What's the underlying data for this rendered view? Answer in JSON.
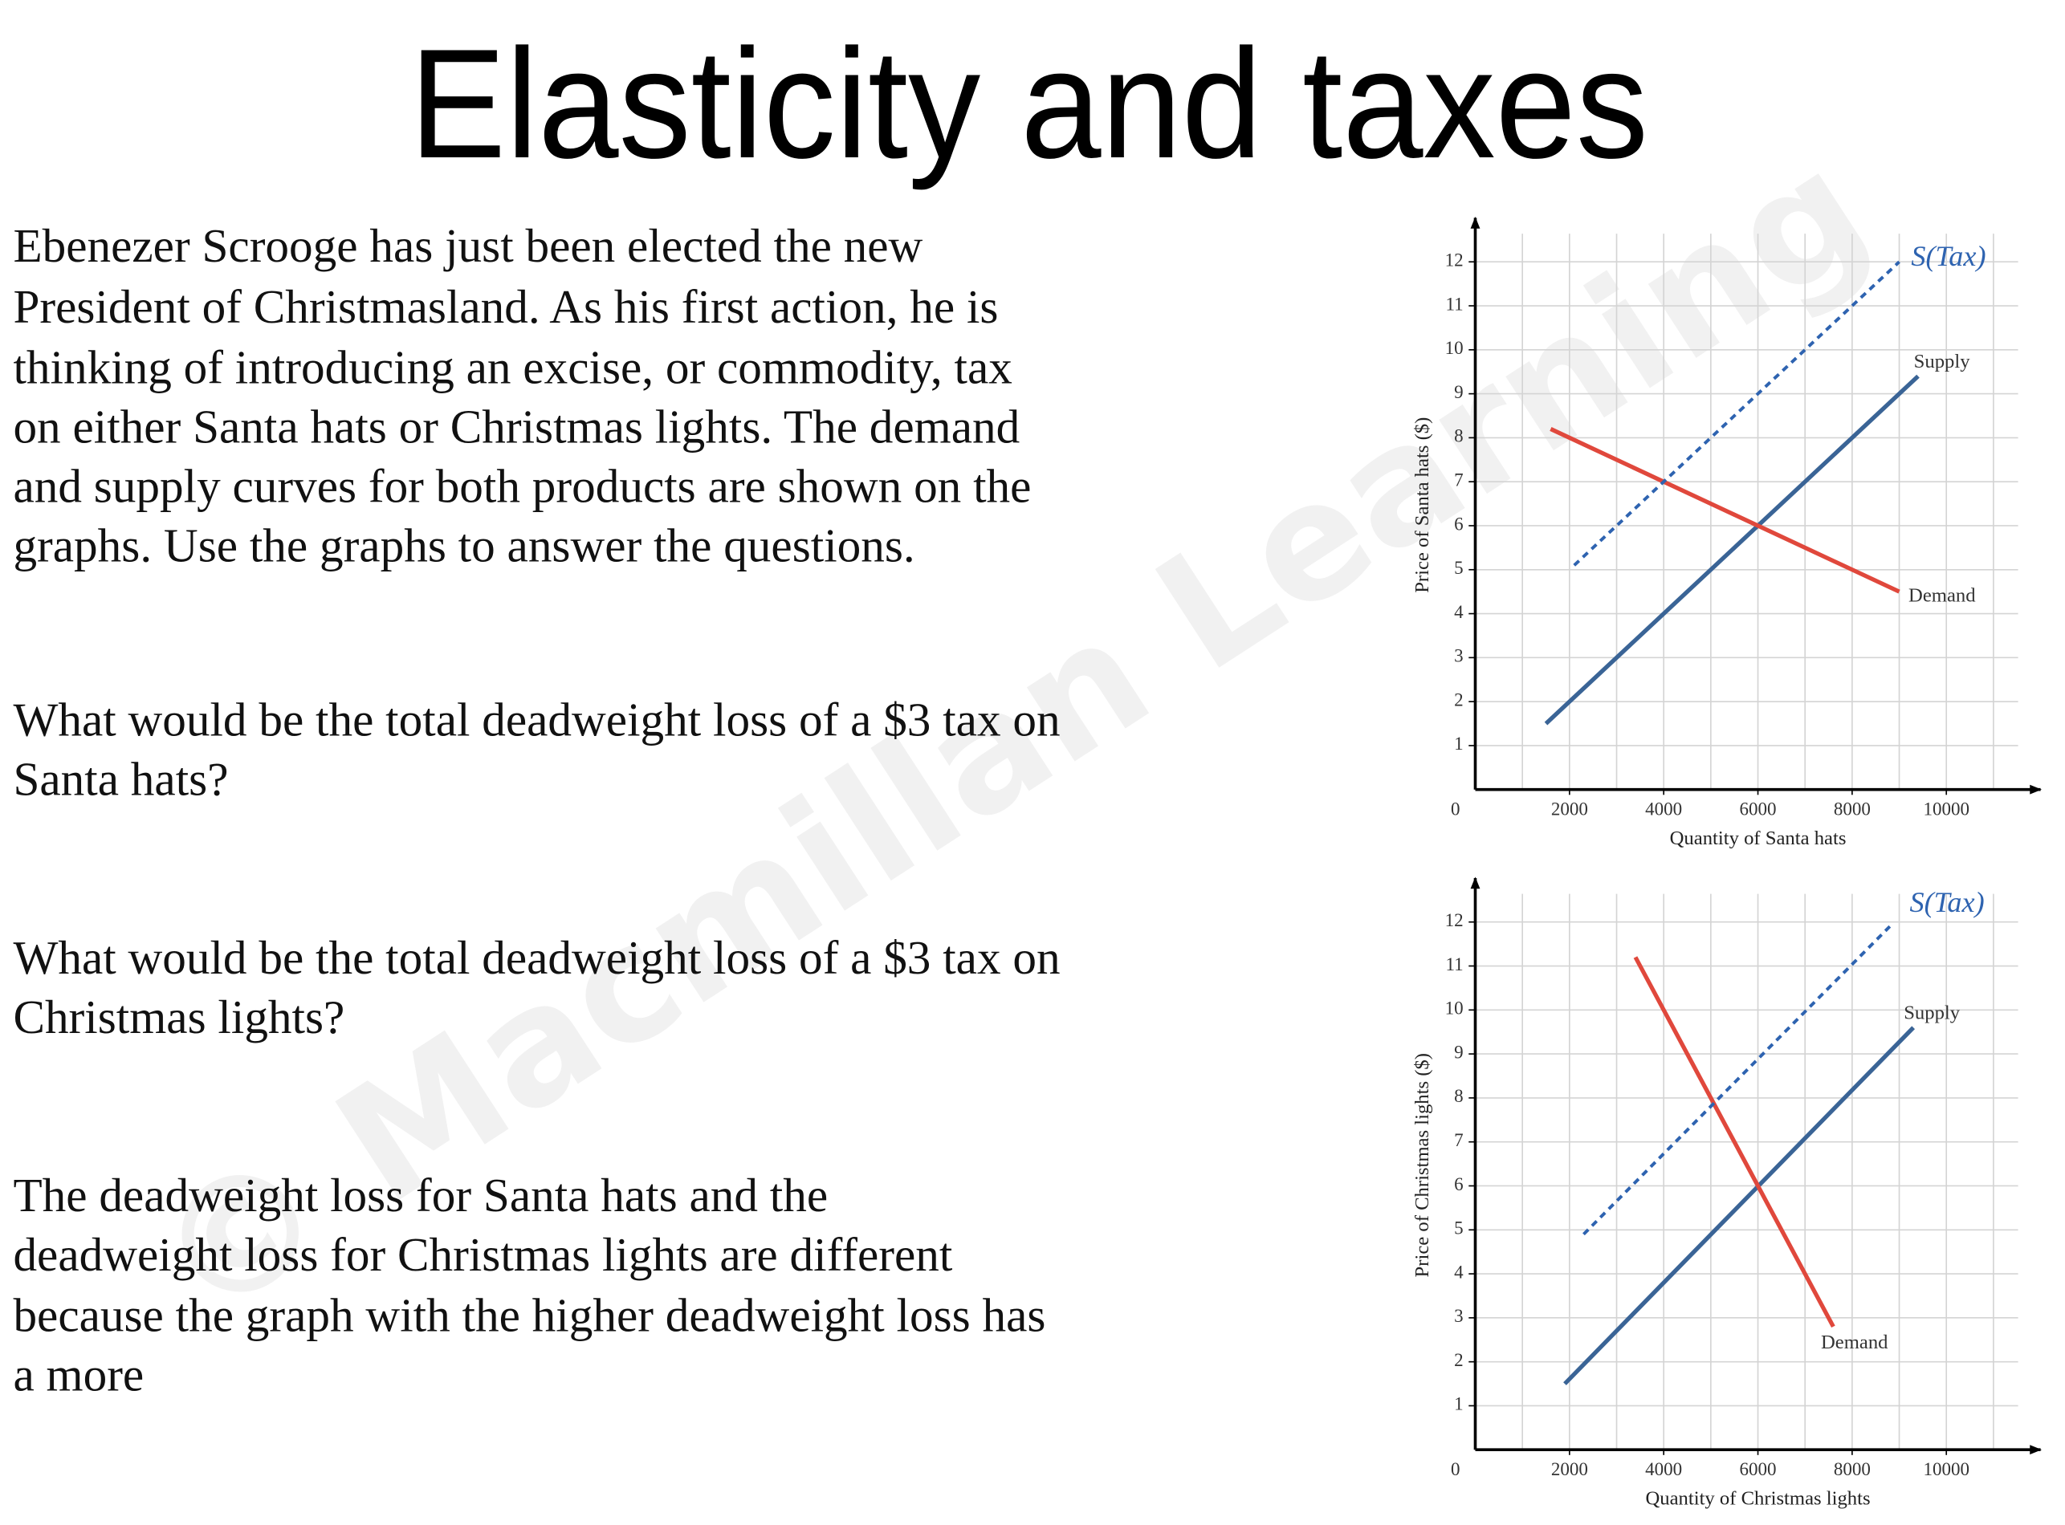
{
  "title": "Elasticity and taxes",
  "watermark": "© Macmillan Learning",
  "paragraphs": [
    [
      "Ebenezer Scrooge has just been elected the new",
      "President of Christmasland. As his first action, he is",
      "thinking of introducing an excise, or commodity, tax",
      "on either Santa hats or Christmas lights. The demand",
      "and supply curves for both products are shown on the",
      "graphs. Use the graphs to answer the questions."
    ],
    [
      "What would be the total deadweight loss of a $3 tax on",
      "Santa hats?"
    ],
    [
      "What would be the total deadweight loss of a $3 tax on",
      "Christmas lights?"
    ],
    [
      "The deadweight loss for Santa hats and the",
      "deadweight loss for Christmas lights are different",
      "because the graph with the higher deadweight loss has",
      "a more"
    ]
  ],
  "chart_data": [
    {
      "type": "line",
      "x_label": "Quantity of Santa hats",
      "y_label": "Price of Santa hats ($)",
      "xlim": [
        0,
        12000
      ],
      "ylim": [
        0,
        13
      ],
      "xticks": [
        0,
        2000,
        4000,
        6000,
        8000,
        10000
      ],
      "yticks": [
        1,
        2,
        3,
        4,
        5,
        6,
        7,
        8,
        9,
        10,
        11,
        12
      ],
      "grid": true,
      "series": [
        {
          "name": "Supply",
          "color": "#3a6496",
          "dashed": false,
          "x": [
            1500,
            9400
          ],
          "values": [
            1.5,
            9.4
          ]
        },
        {
          "name": "Demand",
          "color": "#e0483c",
          "dashed": false,
          "x": [
            1600,
            9000
          ],
          "values": [
            8.2,
            4.5
          ]
        },
        {
          "name": "S(Tax)",
          "color": "#2e63b0",
          "dashed": true,
          "x": [
            2100,
            9000
          ],
          "values": [
            5.1,
            12
          ]
        }
      ]
    },
    {
      "type": "line",
      "x_label": "Quantity of Christmas lights",
      "y_label": "Price of Christmas lights ($)",
      "xlim": [
        0,
        12000
      ],
      "ylim": [
        0,
        13
      ],
      "xticks": [
        0,
        2000,
        4000,
        6000,
        8000,
        10000
      ],
      "yticks": [
        1,
        2,
        3,
        4,
        5,
        6,
        7,
        8,
        9,
        10,
        11,
        12
      ],
      "grid": true,
      "series": [
        {
          "name": "Supply",
          "color": "#3a6496",
          "dashed": false,
          "x": [
            1900,
            9300
          ],
          "values": [
            1.5,
            9.6
          ]
        },
        {
          "name": "Demand",
          "color": "#e0483c",
          "dashed": false,
          "x": [
            3400,
            7600
          ],
          "values": [
            11.2,
            2.8
          ]
        },
        {
          "name": "S(Tax)",
          "color": "#2e63b0",
          "dashed": true,
          "x": [
            2300,
            8800
          ],
          "values": [
            4.9,
            11.9
          ]
        }
      ]
    }
  ]
}
